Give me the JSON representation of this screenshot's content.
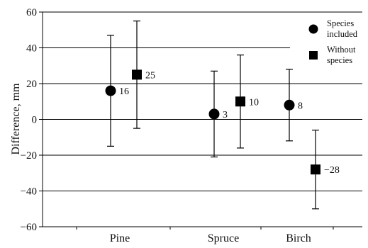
{
  "chart_data": {
    "type": "scatter",
    "ylabel": "Difference, mm",
    "xlabel": "",
    "ylim": [
      -60,
      60
    ],
    "yticks": [
      60,
      40,
      20,
      0,
      -20,
      -40,
      -60
    ],
    "ytick_labels": [
      "60",
      "40",
      "20",
      "0",
      "−20",
      "−40",
      "−60"
    ],
    "grid": true,
    "legend_position": "top-right",
    "categories": [
      "Pine",
      "Spruce",
      "Birch"
    ],
    "series": [
      {
        "name_lines": [
          "Species",
          "included"
        ],
        "marker": "circle",
        "color": "#000000",
        "points": [
          {
            "category": "Pine",
            "y": 16,
            "low": -15,
            "high": 47,
            "label": "16"
          },
          {
            "category": "Spruce",
            "y": 3,
            "low": -21,
            "high": 27,
            "label": "3"
          },
          {
            "category": "Birch",
            "y": 8,
            "low": -12,
            "high": 28,
            "label": "8"
          }
        ]
      },
      {
        "name_lines": [
          "Without",
          "species"
        ],
        "marker": "square",
        "color": "#000000",
        "points": [
          {
            "category": "Pine",
            "y": 25,
            "low": -5,
            "high": 55,
            "label": "25"
          },
          {
            "category": "Spruce",
            "y": 10,
            "low": -16,
            "high": 36,
            "label": "10"
          },
          {
            "category": "Birch",
            "y": -28,
            "low": -50,
            "high": -6,
            "label": "−28"
          }
        ]
      }
    ]
  }
}
